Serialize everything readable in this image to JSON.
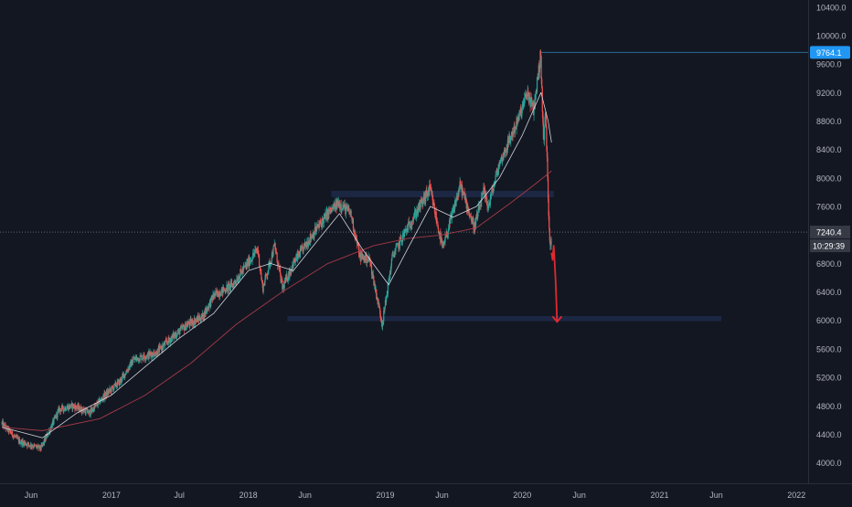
{
  "chart_data": {
    "type": "candlestick",
    "title": "",
    "xlabel": "",
    "ylabel": "",
    "ylim": [
      3700,
      10500
    ],
    "xlim": [
      "2016-03-10",
      "2022-02-01"
    ],
    "grid": false,
    "legend": "none",
    "y_ticks": [
      "4000.0",
      "4400.0",
      "4800.0",
      "5200.0",
      "5600.0",
      "6000.0",
      "6400.0",
      "6800.0",
      "7200.0",
      "7600.0",
      "8000.0",
      "8400.0",
      "8800.0",
      "9200.0",
      "9600.0",
      "10000.0",
      "10400.0"
    ],
    "x_ticks": [
      {
        "label": "Jun",
        "date": "2016-06-01"
      },
      {
        "label": "2017",
        "date": "2017-01-01"
      },
      {
        "label": "Jul",
        "date": "2017-07-01"
      },
      {
        "label": "2018",
        "date": "2018-01-01"
      },
      {
        "label": "Jun",
        "date": "2018-06-01"
      },
      {
        "label": "2019",
        "date": "2019-01-01"
      },
      {
        "label": "Jun",
        "date": "2019-06-01"
      },
      {
        "label": "2020",
        "date": "2020-01-01"
      },
      {
        "label": "Jun",
        "date": "2020-06-01"
      },
      {
        "label": "2021",
        "date": "2021-01-01"
      },
      {
        "label": "Jun",
        "date": "2021-06-01"
      },
      {
        "label": "2022",
        "date": "2022-01-01"
      }
    ],
    "price_path": [
      [
        "2016-03-15",
        4550
      ],
      [
        "2016-05-01",
        4300
      ],
      [
        "2016-06-27",
        4200
      ],
      [
        "2016-08-15",
        4750
      ],
      [
        "2016-09-20",
        4800
      ],
      [
        "2016-11-04",
        4700
      ],
      [
        "2016-12-15",
        4950
      ],
      [
        "2017-01-25",
        5150
      ],
      [
        "2017-03-01",
        5450
      ],
      [
        "2017-05-01",
        5550
      ],
      [
        "2017-06-20",
        5800
      ],
      [
        "2017-07-25",
        5950
      ],
      [
        "2017-09-01",
        6050
      ],
      [
        "2017-10-01",
        6350
      ],
      [
        "2017-11-20",
        6500
      ],
      [
        "2018-01-26",
        7000
      ],
      [
        "2018-02-08",
        6450
      ],
      [
        "2018-03-12",
        7050
      ],
      [
        "2018-04-02",
        6450
      ],
      [
        "2018-05-01",
        6800
      ],
      [
        "2018-06-20",
        7200
      ],
      [
        "2018-08-01",
        7500
      ],
      [
        "2018-08-30",
        7650
      ],
      [
        "2018-10-01",
        7500
      ],
      [
        "2018-10-25",
        6900
      ],
      [
        "2018-11-20",
        6850
      ],
      [
        "2018-12-24",
        5950
      ],
      [
        "2019-01-20",
        6900
      ],
      [
        "2019-03-01",
        7300
      ],
      [
        "2019-04-30",
        7850
      ],
      [
        "2019-06-03",
        7000
      ],
      [
        "2019-07-20",
        7900
      ],
      [
        "2019-08-26",
        7300
      ],
      [
        "2019-09-20",
        7800
      ],
      [
        "2019-10-03",
        7600
      ],
      [
        "2019-11-01",
        8200
      ],
      [
        "2019-12-20",
        8800
      ],
      [
        "2020-01-15",
        9200
      ],
      [
        "2020-01-31",
        8950
      ],
      [
        "2020-02-19",
        9730
      ],
      [
        "2020-02-27",
        8450
      ],
      [
        "2020-03-03",
        8950
      ],
      [
        "2020-03-12",
        7400
      ],
      [
        "2020-03-16",
        7000
      ],
      [
        "2020-03-19",
        7240
      ]
    ],
    "ma_short": [
      [
        "2016-03-15",
        4500
      ],
      [
        "2016-07-01",
        4350
      ],
      [
        "2016-10-01",
        4700
      ],
      [
        "2017-01-01",
        4950
      ],
      [
        "2017-04-01",
        5350
      ],
      [
        "2017-07-01",
        5750
      ],
      [
        "2017-10-01",
        6100
      ],
      [
        "2018-01-01",
        6700
      ],
      [
        "2018-03-01",
        6800
      ],
      [
        "2018-05-01",
        6700
      ],
      [
        "2018-07-01",
        7100
      ],
      [
        "2018-09-01",
        7500
      ],
      [
        "2018-11-01",
        7000
      ],
      [
        "2019-01-10",
        6500
      ],
      [
        "2019-03-01",
        7000
      ],
      [
        "2019-05-01",
        7600
      ],
      [
        "2019-07-01",
        7450
      ],
      [
        "2019-09-01",
        7600
      ],
      [
        "2019-11-01",
        8000
      ],
      [
        "2020-01-01",
        8600
      ],
      [
        "2020-02-20",
        9200
      ],
      [
        "2020-03-10",
        8800
      ],
      [
        "2020-03-19",
        8500
      ]
    ],
    "ma_long": [
      [
        "2016-03-15",
        4500
      ],
      [
        "2016-07-01",
        4450
      ],
      [
        "2016-12-01",
        4620
      ],
      [
        "2017-04-01",
        4950
      ],
      [
        "2017-08-01",
        5400
      ],
      [
        "2017-12-01",
        5950
      ],
      [
        "2018-04-01",
        6400
      ],
      [
        "2018-08-01",
        6800
      ],
      [
        "2018-12-01",
        7050
      ],
      [
        "2019-03-01",
        7150
      ],
      [
        "2019-06-01",
        7200
      ],
      [
        "2019-09-01",
        7300
      ],
      [
        "2019-12-01",
        7650
      ],
      [
        "2020-02-01",
        7900
      ],
      [
        "2020-03-19",
        8100
      ]
    ],
    "zones": [
      {
        "from": "2018-08-10",
        "to": "2020-03-25",
        "low": 7730,
        "high": 7820
      },
      {
        "from": "2018-04-15",
        "to": "2021-06-15",
        "low": 5990,
        "high": 6060
      }
    ],
    "high_level": {
      "value": 9764.1,
      "from": "2020-02-19",
      "label": "9764.1"
    },
    "last_price": {
      "value": 7240.4,
      "label": "7240.4",
      "countdown": "10:29:39"
    },
    "projection": [
      [
        "2020-03-19",
        6950
      ],
      [
        "2020-03-22",
        6850
      ],
      [
        "2020-03-25",
        7050
      ],
      [
        "2020-03-27",
        6850
      ],
      [
        "2020-03-30",
        6550
      ],
      [
        "2020-04-03",
        5980
      ]
    ],
    "colors": {
      "background": "#131722",
      "up": "#26a69a",
      "down": "#ef5350",
      "ma_short": "#d1d4dc",
      "ma_long": "#a33a46",
      "zone": "#1e2a4a",
      "projection": "#e0292e",
      "high_label_bg": "#2196f3",
      "last_label_bg": "#363a45",
      "axis_text": "#b2b5be",
      "level_line": "#2a6a96"
    }
  }
}
